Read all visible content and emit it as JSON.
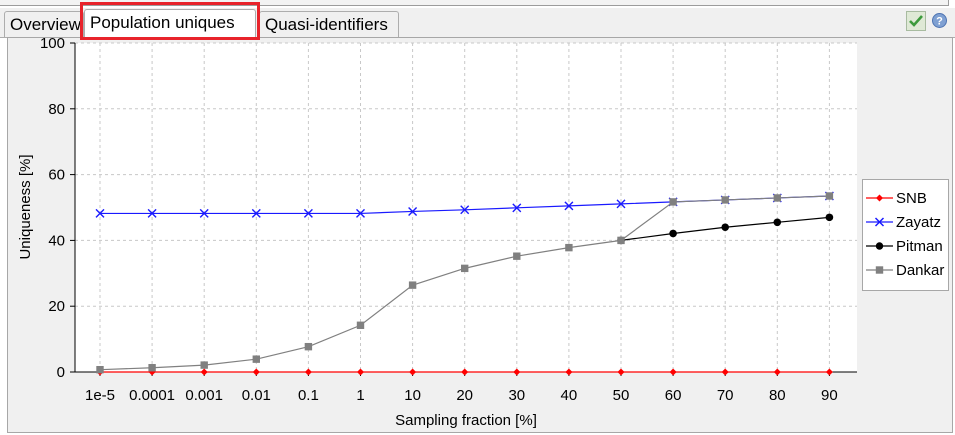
{
  "tabs": {
    "overview": "Overview",
    "population_uniques": "Population uniques",
    "quasi_identifiers": "Quasi-identifiers"
  },
  "toolbar": {
    "check_icon": "check-icon",
    "help_icon": "help-icon"
  },
  "colors": {
    "SNB": "#ff0000",
    "Zayatz": "#1a1aff",
    "Pitman": "#000000",
    "Dankar": "#808080",
    "highlight": "#e8232b"
  },
  "chart_data": {
    "type": "line",
    "xlabel": "Sampling fraction [%]",
    "ylabel": "Uniqueness [%]",
    "categories": [
      "1e-5",
      "0.0001",
      "0.001",
      "0.01",
      "0.1",
      "1",
      "10",
      "20",
      "30",
      "40",
      "50",
      "60",
      "70",
      "80",
      "90"
    ],
    "ylim": [
      0,
      100
    ],
    "yticks": [
      "0",
      "20",
      "40",
      "60",
      "80",
      "100"
    ],
    "grid": true,
    "legend_position": "right",
    "series": [
      {
        "name": "SNB",
        "marker": "diamond",
        "values": [
          0,
          0,
          0,
          0,
          0,
          0,
          0,
          0,
          0,
          0,
          0,
          0,
          0,
          0,
          0
        ]
      },
      {
        "name": "Zayatz",
        "marker": "x",
        "values": [
          48.2,
          48.2,
          48.2,
          48.2,
          48.2,
          48.2,
          48.8,
          49.3,
          49.9,
          50.5,
          51.1,
          51.7,
          52.3,
          52.9,
          53.5
        ]
      },
      {
        "name": "Pitman",
        "marker": "circle",
        "values": [
          null,
          null,
          null,
          null,
          null,
          null,
          null,
          null,
          null,
          null,
          40.0,
          42.1,
          44.0,
          45.5,
          47.0
        ]
      },
      {
        "name": "Dankar",
        "marker": "square",
        "values": [
          0.7,
          1.3,
          2.1,
          3.9,
          7.7,
          14.2,
          26.4,
          31.5,
          35.2,
          37.8,
          40.0,
          51.7,
          52.3,
          52.9,
          53.5
        ]
      }
    ]
  }
}
